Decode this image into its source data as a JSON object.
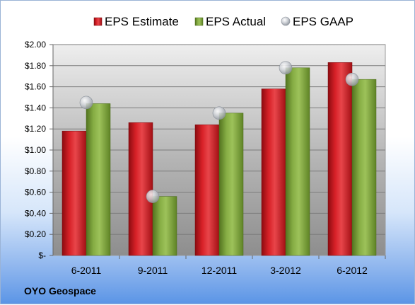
{
  "company": "OYO Geospace",
  "colors": {
    "estimate": "#c0151b",
    "actual": "#77a13a",
    "gaap": "#b9bdc4"
  },
  "chart_data": {
    "type": "bar",
    "categories": [
      "6-2011",
      "9-2011",
      "12-2011",
      "3-2012",
      "6-2012"
    ],
    "series": [
      {
        "name": "EPS Estimate",
        "kind": "bar",
        "values": [
          1.18,
          1.26,
          1.24,
          1.58,
          1.83
        ]
      },
      {
        "name": "EPS Actual",
        "kind": "bar",
        "values": [
          1.44,
          0.56,
          1.35,
          1.78,
          1.67
        ]
      },
      {
        "name": "EPS GAAP",
        "kind": "marker",
        "values": [
          1.45,
          0.56,
          1.35,
          1.78,
          1.67
        ]
      }
    ],
    "yticks": [
      "$-",
      "$0.20",
      "$0.40",
      "$0.60",
      "$0.80",
      "$1.00",
      "$1.20",
      "$1.40",
      "$1.60",
      "$1.80",
      "$2.00"
    ],
    "ylim": [
      0,
      2.0
    ],
    "ystep": 0.2,
    "grid": true,
    "legend_position": "top"
  }
}
